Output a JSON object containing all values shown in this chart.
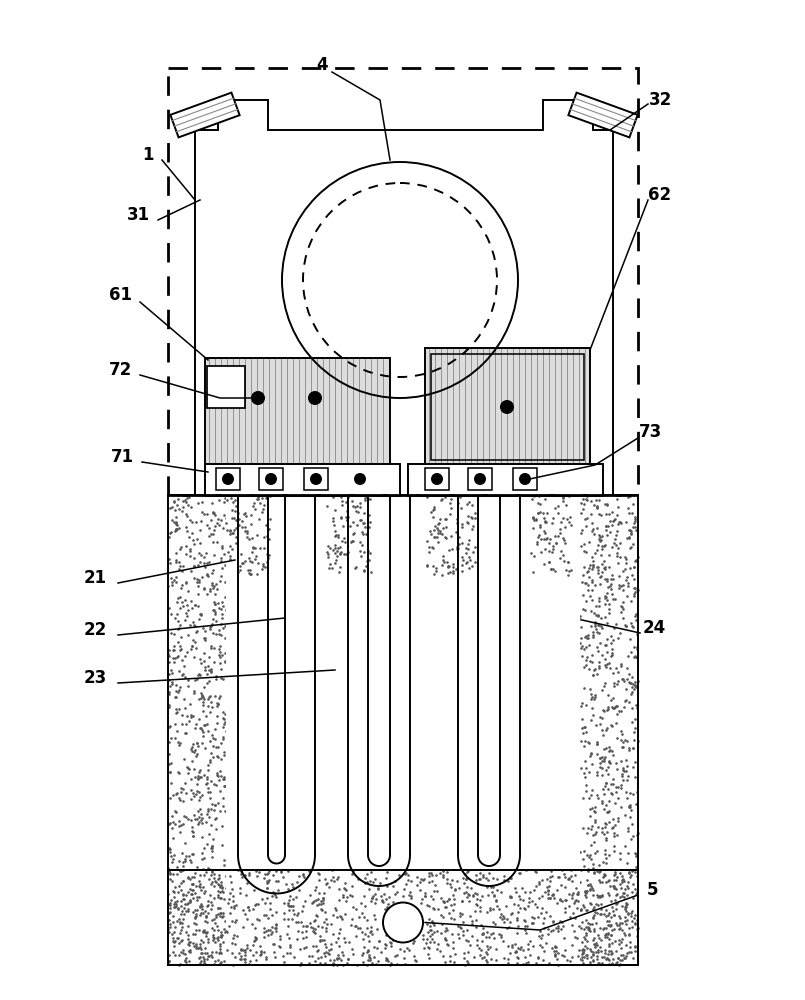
{
  "fig_width": 8.05,
  "fig_height": 10.0,
  "bg_color": "#ffffff",
  "lc": "#000000",
  "lw": 1.4,
  "lw_heavy": 2.0,
  "lw_thin": 0.9,
  "stipple_dot_size": 3.5,
  "stipple_color": "#555555",
  "hatch_color": "#777777",
  "label_fontsize": 12
}
